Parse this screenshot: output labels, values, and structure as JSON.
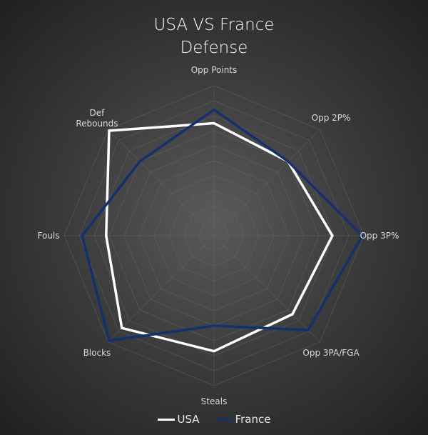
{
  "chart_data": {
    "type": "radar",
    "title": "USA VS France",
    "subtitle": "Defense",
    "categories": [
      "Opp Points",
      "Opp 2P%",
      "Opp 3P%",
      "Opp 3PA/FGA",
      "Steals",
      "Blocks",
      "Fouls",
      "Def Rebounds"
    ],
    "series": [
      {
        "name": "USA",
        "color": "#ffffff",
        "values": [
          7.5,
          7.0,
          7.9,
          7.4,
          7.7,
          8.7,
          7.2,
          9.9
        ]
      },
      {
        "name": "France",
        "color": "#14306e",
        "values": [
          8.4,
          7.0,
          9.9,
          8.9,
          6.0,
          9.9,
          8.8,
          7.0
        ]
      }
    ],
    "ylim": [
      0,
      10
    ],
    "grid": true,
    "legend": "bottom"
  }
}
